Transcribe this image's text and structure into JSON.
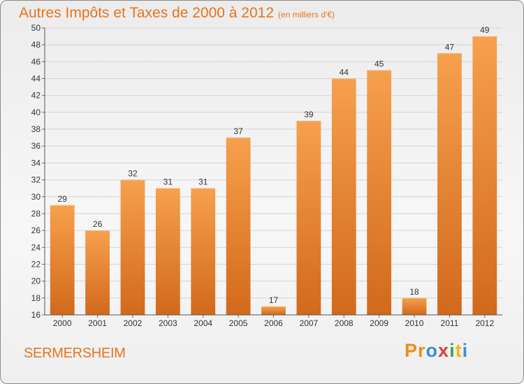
{
  "header": {
    "title": "Autres Impôts et Taxes de 2000 à 2012",
    "subtitle": "(en milliers d'€)"
  },
  "footer": {
    "location": "SERMERSHEIM",
    "logo_text": "Proxiti"
  },
  "colors": {
    "accent": "#e8731f",
    "bar_top": "#f6a04e",
    "bar_bottom": "#d2691c",
    "logo": [
      "#f08a1c",
      "#f08a1c",
      "#3a8fd6",
      "#e23b3b",
      "#3aa845",
      "#f0b81c",
      "#3a8fd6"
    ]
  },
  "chart_data": {
    "type": "bar",
    "categories": [
      "2000",
      "2001",
      "2002",
      "2003",
      "2004",
      "2005",
      "2006",
      "2007",
      "2008",
      "2009",
      "2010",
      "2011",
      "2012"
    ],
    "values": [
      29,
      26,
      32,
      31,
      31,
      37,
      17,
      39,
      44,
      45,
      18,
      47,
      49
    ],
    "data_labels": [
      "29",
      "26",
      "32",
      "31",
      "31",
      "37",
      "17",
      "39",
      "44",
      "45",
      "18",
      "47",
      "49"
    ],
    "title": "Autres Impôts et Taxes de 2000 à 2012",
    "subtitle": "(en milliers d'€)",
    "xlabel": "",
    "ylabel": "",
    "ylim": [
      16,
      50
    ],
    "yticks": [
      16,
      18,
      20,
      22,
      24,
      26,
      28,
      30,
      32,
      34,
      36,
      38,
      40,
      42,
      44,
      46,
      48,
      50
    ],
    "grid": true,
    "legend": "none"
  }
}
